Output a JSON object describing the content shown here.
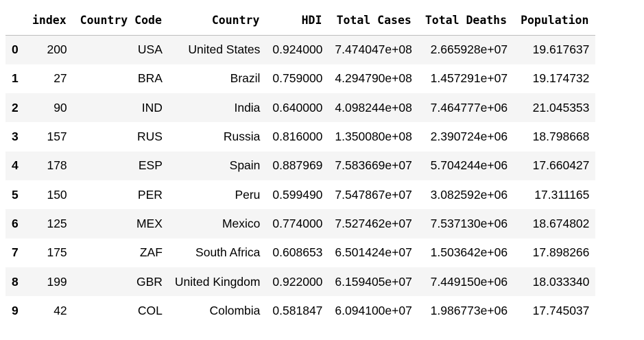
{
  "table": {
    "columns": [
      "index",
      "Country Code",
      "Country",
      "HDI",
      "Total Cases",
      "Total Deaths",
      "Population"
    ],
    "rows": [
      {
        "row_label": "0",
        "cells": [
          "200",
          "USA",
          "United States",
          "0.924000",
          "7.474047e+08",
          "2.665928e+07",
          "19.617637"
        ]
      },
      {
        "row_label": "1",
        "cells": [
          "27",
          "BRA",
          "Brazil",
          "0.759000",
          "4.294790e+08",
          "1.457291e+07",
          "19.174732"
        ]
      },
      {
        "row_label": "2",
        "cells": [
          "90",
          "IND",
          "India",
          "0.640000",
          "4.098244e+08",
          "7.464777e+06",
          "21.045353"
        ]
      },
      {
        "row_label": "3",
        "cells": [
          "157",
          "RUS",
          "Russia",
          "0.816000",
          "1.350080e+08",
          "2.390724e+06",
          "18.798668"
        ]
      },
      {
        "row_label": "4",
        "cells": [
          "178",
          "ESP",
          "Spain",
          "0.887969",
          "7.583669e+07",
          "5.704244e+06",
          "17.660427"
        ]
      },
      {
        "row_label": "5",
        "cells": [
          "150",
          "PER",
          "Peru",
          "0.599490",
          "7.547867e+07",
          "3.082592e+06",
          "17.311165"
        ]
      },
      {
        "row_label": "6",
        "cells": [
          "125",
          "MEX",
          "Mexico",
          "0.774000",
          "7.527462e+07",
          "7.537130e+06",
          "18.674802"
        ]
      },
      {
        "row_label": "7",
        "cells": [
          "175",
          "ZAF",
          "South Africa",
          "0.608653",
          "6.501424e+07",
          "1.503642e+06",
          "17.898266"
        ]
      },
      {
        "row_label": "8",
        "cells": [
          "199",
          "GBR",
          "United Kingdom",
          "0.922000",
          "6.159405e+07",
          "7.449150e+06",
          "18.033340"
        ]
      },
      {
        "row_label": "9",
        "cells": [
          "42",
          "COL",
          "Colombia",
          "0.581847",
          "6.094100e+07",
          "1.986773e+06",
          "17.745037"
        ]
      }
    ]
  }
}
